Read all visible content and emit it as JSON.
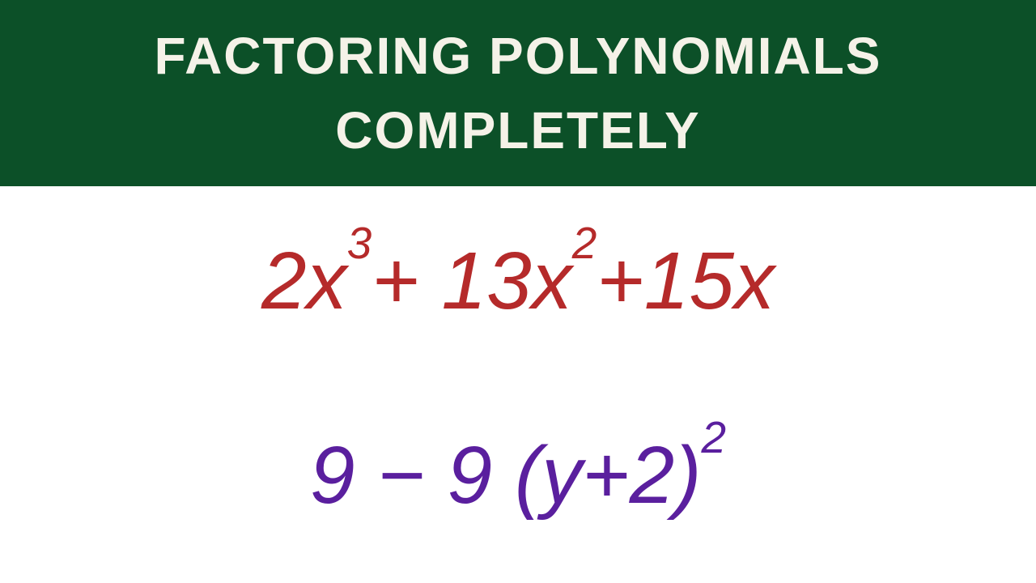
{
  "banner": {
    "line1": "FACTORING POLYNOMIALS",
    "line2": "COMPLETELY",
    "background_color": "#0c5028",
    "text_color": "#f5f2e8",
    "font_size": 64
  },
  "equation1": {
    "color": "#b52a2a",
    "font_size": 100,
    "terms": {
      "t1_coef": "2",
      "t1_var": "x",
      "t1_exp": "3",
      "op1": "+",
      "t2_coef": "13",
      "t2_var": "x",
      "t2_exp": "2",
      "op2": "+",
      "t3_coef": "15",
      "t3_var": "x"
    }
  },
  "equation2": {
    "color": "#5a1f9e",
    "font_size": 100,
    "terms": {
      "t1": "9",
      "op1": "−",
      "t2_coef": "9",
      "t2_open": "(",
      "t2_inner_var": "y",
      "t2_inner_op": "+",
      "t2_inner_const": "2",
      "t2_close": ")",
      "t2_exp": "2"
    }
  }
}
